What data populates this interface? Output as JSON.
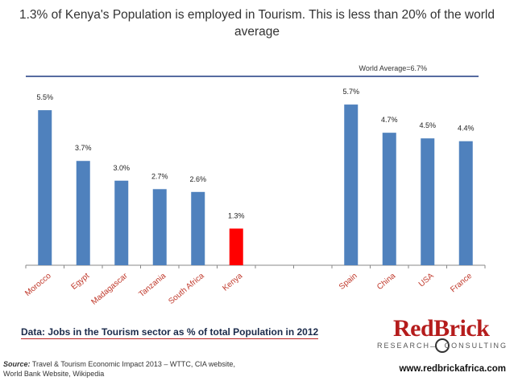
{
  "title": "1.3% of Kenya's Population is employed in Tourism. This is less than 20% of the world average",
  "chart_data": {
    "type": "bar",
    "categories": [
      "Morocco",
      "Egypt",
      "Madagascar",
      "Tanzania",
      "South Africa",
      "Kenya",
      "",
      "",
      "Spain",
      "China",
      "USA",
      "France"
    ],
    "values": [
      5.5,
      3.7,
      3.0,
      2.7,
      2.6,
      1.3,
      null,
      null,
      5.7,
      4.7,
      4.5,
      4.4
    ],
    "data_labels": [
      "5.5%",
      "3.7%",
      "3.0%",
      "2.7%",
      "2.6%",
      "1.3%",
      "",
      "",
      "5.7%",
      "4.7%",
      "4.5%",
      "4.4%"
    ],
    "highlight_category": "Kenya",
    "colors": {
      "bar": "#4f81bd",
      "highlight": "#ff0000",
      "reference_line": "#1f3a80",
      "axis": "#888888"
    },
    "reference_line": {
      "value": 6.7,
      "label": "World Average=6.7%"
    },
    "ylim": [
      0,
      6.7
    ],
    "xlabel": "",
    "ylabel": ""
  },
  "caption": "Data: Jobs in the Tourism sector as % of total Population in 2012",
  "source": {
    "label": "Source:",
    "text": "Travel & Tourism Economic Impact 2013 – WTTC, CIA website, World Bank Website, Wikipedia"
  },
  "logo": {
    "name": "RedBrick",
    "left_text": "RESEARCH",
    "right_text": "CONSULTING"
  },
  "website": "www.redbrickafrica.com"
}
